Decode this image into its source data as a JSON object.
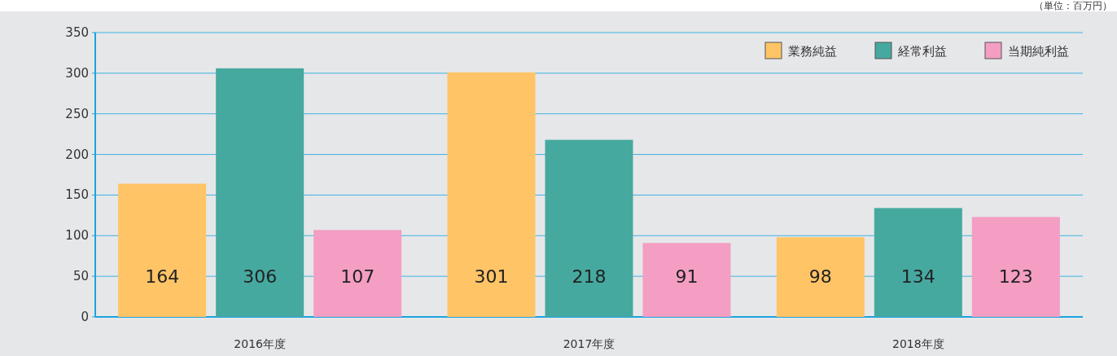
{
  "chart_data": {
    "type": "bar",
    "categories": [
      "2016年度",
      "2017年度",
      "2018年度"
    ],
    "series": [
      {
        "name": "業務純益",
        "color": "#ffc466",
        "values": [
          164,
          301,
          98
        ]
      },
      {
        "name": "経常利益",
        "color": "#45a9a0",
        "values": [
          306,
          218,
          134
        ]
      },
      {
        "name": "当期純利益",
        "color": "#f49ec4",
        "values": [
          107,
          91,
          123
        ]
      }
    ],
    "ylim": [
      0,
      350
    ],
    "yticks": [
      0,
      50,
      100,
      150,
      200,
      250,
      300,
      350
    ],
    "grid": "y",
    "legend": "top right",
    "data_labels": true,
    "annotations": [
      "（単位：百万円）"
    ]
  }
}
